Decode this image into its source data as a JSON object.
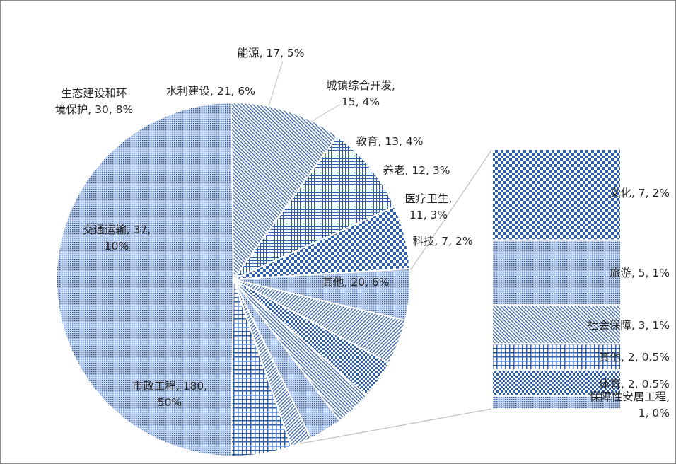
{
  "chart_data": {
    "type": "pie",
    "subtype": "bar-of-pie",
    "title": "",
    "colors": {
      "fill": "#2f5fa8",
      "slice_background": "#ffffff",
      "leader": "#bfbfbf",
      "text": "#262626"
    },
    "slices": [
      {
        "name": "市政工程",
        "value": 180,
        "percent": "50%",
        "label_lines": [
          "市政工程, 180,",
          "50%"
        ],
        "pattern": "pattern-dots-dense"
      },
      {
        "name": "交通运输",
        "value": 37,
        "percent": "10%",
        "label_lines": [
          "交通运输, 37,",
          "10%"
        ],
        "pattern": "pattern-diag-down"
      },
      {
        "name": "生态建设和环境保护",
        "value": 30,
        "percent": "8%",
        "label_lines": [
          "生态建设和环",
          "境保护, 30, 8%"
        ],
        "pattern": "pattern-small-grid"
      },
      {
        "name": "水利建设",
        "value": 21,
        "percent": "6%",
        "label_lines": [
          "水利建设, 21, 6%"
        ],
        "pattern": "pattern-large-check"
      },
      {
        "name": "能源",
        "value": 17,
        "percent": "5%",
        "label_lines": [
          "能源, 17, 5%"
        ],
        "pattern": "pattern-dots-dense"
      },
      {
        "name": "城镇综合开发",
        "value": 15,
        "percent": "4%",
        "label_lines": [
          "城镇综合开发,",
          "15, 4%"
        ],
        "pattern": "pattern-diag-up"
      },
      {
        "name": "教育",
        "value": 13,
        "percent": "4%",
        "label_lines": [
          "教育, 13, 4%"
        ],
        "pattern": "pattern-small-check"
      },
      {
        "name": "养老",
        "value": 12,
        "percent": "3%",
        "label_lines": [
          "养老, 12, 3%"
        ],
        "pattern": "pattern-diag-down"
      },
      {
        "name": "医疗卫生",
        "value": 11,
        "percent": "3%",
        "label_lines": [
          "医疗卫生,",
          "11, 3%"
        ],
        "pattern": "pattern-dots-dense"
      },
      {
        "name": "科技",
        "value": 7,
        "percent": "2%",
        "label_lines": [
          "科技, 7, 2%"
        ],
        "pattern": "pattern-diag-up"
      },
      {
        "name": "其他",
        "value": 20,
        "percent": "6%",
        "label_lines": [
          "其他, 20, 6%"
        ],
        "pattern": "pattern-grid",
        "is_secondary_group": true
      }
    ],
    "secondary_bar": [
      {
        "name": "文化",
        "value": 7,
        "percent": "2%",
        "label_lines": [
          "文化, 7, 2%"
        ],
        "pattern": "pattern-large-check"
      },
      {
        "name": "旅游",
        "value": 5,
        "percent": "1%",
        "label_lines": [
          "旅游, 5, 1%"
        ],
        "pattern": "pattern-dots-dense"
      },
      {
        "name": "社会保障",
        "value": 3,
        "percent": "1%",
        "label_lines": [
          "社会保障, 3, 1%"
        ],
        "pattern": "pattern-diag-down"
      },
      {
        "name": "其他",
        "value": 2,
        "percent": "0.5%",
        "label_lines": [
          "其他, 2, 0.5%"
        ],
        "pattern": "pattern-grid"
      },
      {
        "name": "体育",
        "value": 2,
        "percent": "0.5%",
        "label_lines": [
          "体育, 2, 0.5%"
        ],
        "pattern": "pattern-small-check"
      },
      {
        "name": "保障性安居工程",
        "value": 1,
        "percent": "0%",
        "label_lines": [
          "保障性安居工程,",
          "1, 0%"
        ],
        "pattern": "pattern-dots-dense"
      }
    ]
  }
}
